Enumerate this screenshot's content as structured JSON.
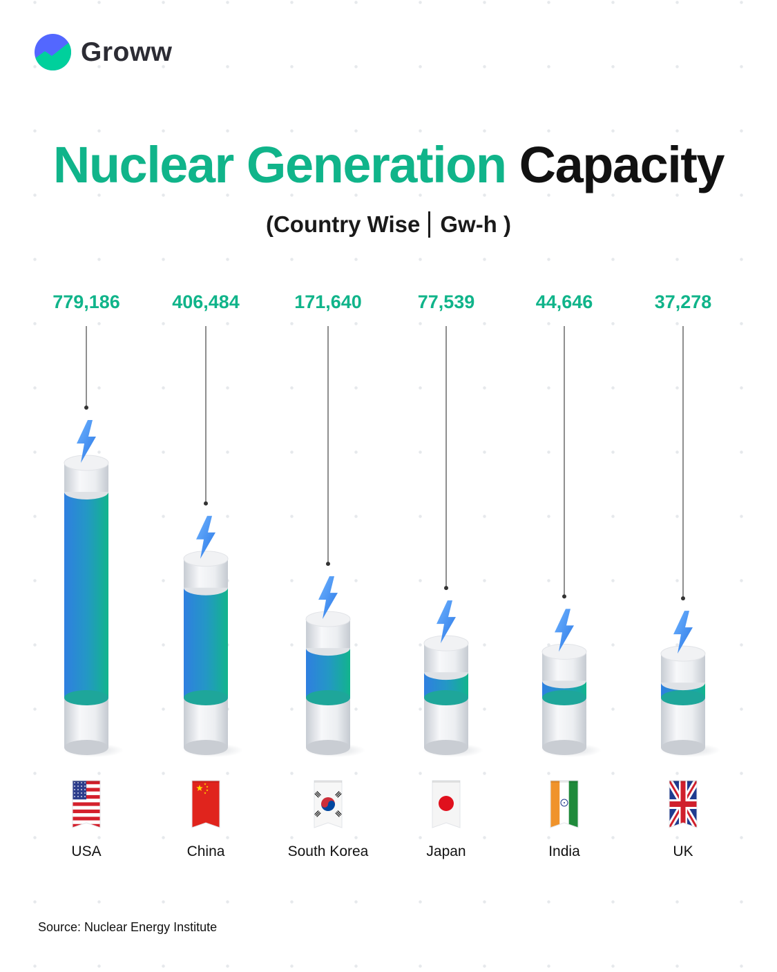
{
  "brand": {
    "name": "Groww"
  },
  "title": {
    "part1": "Nuclear Generation",
    "part2": "Capacity"
  },
  "subtitle": {
    "part1": "(Country Wise",
    "part2": "Gw-h )"
  },
  "source": "Source: Nuclear Energy Institute",
  "colors": {
    "accent": "#10b48a",
    "bar_blue": "#2f7fe0",
    "bar_green": "#12b48c",
    "bolt": "#3b8df2",
    "cap_white": "#f3f4f6"
  },
  "chart_data": {
    "type": "bar",
    "title": "Nuclear Generation Capacity",
    "subtitle": "(Country Wise | Gw-h )",
    "categories": [
      "USA",
      "China",
      "South Korea",
      "Japan",
      "India",
      "UK"
    ],
    "values": [
      779186,
      406484,
      171640,
      77539,
      44646,
      37278
    ],
    "value_labels": [
      "779,186",
      "406,484",
      "171,640",
      "77,539",
      "44,646",
      "37,278"
    ],
    "flags": [
      "usa",
      "china",
      "south-korea",
      "japan",
      "india",
      "uk"
    ],
    "legend": "none",
    "grid": false
  }
}
